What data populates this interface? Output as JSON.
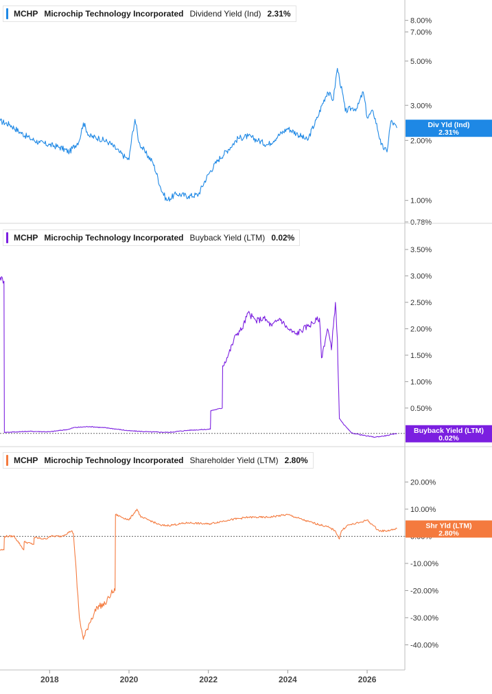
{
  "chart_data": [
    {
      "type": "line",
      "ticker": "MCHP",
      "company": "Microchip Technology Incorporated",
      "metric": "Dividend Yield (Ind)",
      "current_value": "2.31%",
      "badge": {
        "title": "Div Yld (Ind)",
        "value": "2.31%"
      },
      "color": "#1e88e5",
      "yscale": "log",
      "ylim": [
        0.78,
        9.5
      ],
      "yticks": [
        {
          "v": 8,
          "label": "8.00%"
        },
        {
          "v": 7,
          "label": "7.00%"
        },
        {
          "v": 5,
          "label": "5.00%"
        },
        {
          "v": 3,
          "label": "3.00%"
        },
        {
          "v": 2,
          "label": "2.00%"
        },
        {
          "v": 1,
          "label": "1.00%"
        },
        {
          "v": 0.78,
          "label": "0.78%"
        }
      ],
      "x": [
        2016.75,
        2017.0,
        2017.25,
        2017.5,
        2017.75,
        2018.0,
        2018.25,
        2018.5,
        2018.75,
        2018.85,
        2019.0,
        2019.25,
        2019.5,
        2019.75,
        2019.9,
        2020.0,
        2020.15,
        2020.25,
        2020.4,
        2020.6,
        2020.8,
        2020.95,
        2021.2,
        2021.5,
        2021.75,
        2022.0,
        2022.25,
        2022.5,
        2022.75,
        2023.0,
        2023.25,
        2023.5,
        2023.75,
        2024.0,
        2024.25,
        2024.5,
        2024.75,
        2025.0,
        2025.15,
        2025.25,
        2025.3,
        2025.45,
        2025.6,
        2025.75,
        2025.9,
        2026.0,
        2026.15,
        2026.35,
        2026.5,
        2026.6,
        2026.75
      ],
      "values": [
        2.5,
        2.4,
        2.2,
        2.05,
        1.95,
        1.9,
        1.85,
        1.75,
        2.0,
        2.45,
        2.1,
        2.05,
        1.95,
        1.75,
        1.65,
        1.6,
        2.55,
        1.95,
        1.75,
        1.55,
        1.15,
        1.0,
        1.08,
        1.05,
        1.07,
        1.35,
        1.6,
        1.8,
        2.05,
        2.1,
        2.0,
        1.9,
        2.1,
        2.3,
        2.15,
        2.0,
        2.6,
        3.5,
        3.2,
        4.6,
        4.1,
        2.8,
        2.9,
        2.9,
        3.5,
        2.6,
        2.8,
        1.9,
        1.75,
        2.5,
        2.31
      ]
    },
    {
      "type": "line",
      "ticker": "MCHP",
      "company": "Microchip Technology Incorporated",
      "metric": "Buyback Yield (LTM)",
      "current_value": "0.02%",
      "badge": {
        "title": "Buyback Yield (LTM)",
        "value": "0.02%"
      },
      "color": "#7b1fe0",
      "yscale": "linear",
      "ylim": [
        -0.1,
        3.8
      ],
      "zero_line": 0.02,
      "yticks": [
        {
          "v": 3.5,
          "label": "3.50%"
        },
        {
          "v": 3.0,
          "label": "3.00%"
        },
        {
          "v": 2.5,
          "label": "2.50%"
        },
        {
          "v": 2.0,
          "label": "2.00%"
        },
        {
          "v": 1.5,
          "label": "1.50%"
        },
        {
          "v": 1.0,
          "label": "1.00%"
        },
        {
          "v": 0.5,
          "label": "0.50%"
        }
      ],
      "x": [
        2016.75,
        2016.85,
        2016.86,
        2017.5,
        2018.0,
        2018.5,
        2018.6,
        2019.0,
        2019.5,
        2020.0,
        2020.5,
        2021.0,
        2021.5,
        2022.05,
        2022.06,
        2022.35,
        2022.36,
        2022.5,
        2022.7,
        2022.85,
        2023.0,
        2023.2,
        2023.4,
        2023.6,
        2023.8,
        2024.0,
        2024.2,
        2024.5,
        2024.8,
        2024.85,
        2025.0,
        2025.05,
        2025.1,
        2025.2,
        2025.25,
        2025.3,
        2025.35,
        2025.4,
        2025.6,
        2025.8,
        2026.0,
        2026.2,
        2026.5,
        2026.75
      ],
      "values": [
        2.98,
        2.9,
        0.04,
        0.06,
        0.05,
        0.1,
        0.13,
        0.15,
        0.12,
        0.07,
        0.05,
        0.04,
        0.08,
        0.1,
        0.45,
        0.5,
        1.3,
        1.5,
        1.9,
        2.0,
        2.3,
        2.15,
        2.2,
        2.05,
        2.2,
        2.0,
        1.9,
        2.05,
        2.2,
        1.45,
        2.0,
        1.85,
        1.6,
        2.5,
        1.8,
        0.3,
        0.25,
        0.2,
        0.03,
        0.0,
        -0.03,
        -0.05,
        -0.02,
        0.02
      ]
    },
    {
      "type": "line",
      "ticker": "MCHP",
      "company": "Microchip Technology Incorporated",
      "metric": "Shareholder Yield (LTM)",
      "current_value": "2.80%",
      "badge": {
        "title": "Shr Yld (LTM)",
        "value": "2.80%"
      },
      "color": "#f47a3e",
      "yscale": "linear",
      "ylim": [
        -48,
        30
      ],
      "zero_line": 0,
      "yticks": [
        {
          "v": 20,
          "label": "20.00%"
        },
        {
          "v": 10,
          "label": "10.00%"
        },
        {
          "v": 0,
          "label": "0.00%"
        },
        {
          "v": -10,
          "label": "-10.00%"
        },
        {
          "v": -20,
          "label": "-20.00%"
        },
        {
          "v": -30,
          "label": "-30.00%"
        },
        {
          "v": -40,
          "label": "-40.00%"
        }
      ],
      "x": [
        2016.75,
        2016.85,
        2016.86,
        2017.1,
        2017.11,
        2017.35,
        2017.36,
        2017.6,
        2017.61,
        2017.9,
        2018.0,
        2018.3,
        2018.55,
        2018.6,
        2018.75,
        2018.85,
        2019.0,
        2019.2,
        2019.4,
        2019.55,
        2019.65,
        2019.66,
        2020.0,
        2020.2,
        2020.3,
        2020.5,
        2020.8,
        2021.0,
        2021.5,
        2022.0,
        2022.5,
        2023.0,
        2023.5,
        2024.0,
        2024.5,
        2025.0,
        2025.2,
        2025.3,
        2025.35,
        2025.5,
        2025.8,
        2026.0,
        2026.15,
        2026.3,
        2026.5,
        2026.75
      ],
      "values": [
        -5,
        -5,
        0,
        0,
        0,
        -5,
        -2,
        -3,
        -0.5,
        -1,
        0,
        0,
        2,
        1,
        -30,
        -38,
        -32,
        -26,
        -25,
        -21,
        -20,
        8,
        6,
        10,
        7,
        6,
        4,
        4,
        5,
        4.5,
        6,
        7,
        7,
        8,
        5.5,
        3.5,
        2,
        -1,
        2,
        4,
        5,
        6,
        4,
        2,
        2,
        2.8
      ]
    }
  ],
  "x_axis": {
    "ticks": [
      {
        "v": 2018,
        "label": "2018"
      },
      {
        "v": 2020,
        "label": "2020"
      },
      {
        "v": 2022,
        "label": "2022"
      },
      {
        "v": 2024,
        "label": "2024"
      },
      {
        "v": 2026,
        "label": "2026"
      }
    ],
    "range": [
      2016.75,
      2026.95
    ]
  }
}
